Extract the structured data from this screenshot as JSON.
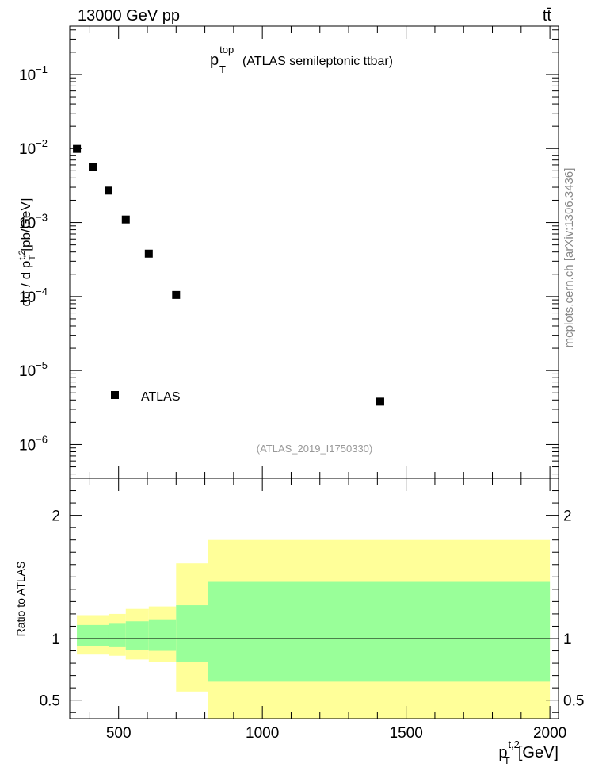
{
  "header": {
    "energy_label": "13000 GeV pp",
    "process_label": "tt̄"
  },
  "watermark": "mcplots.cern.ch [arXiv:1306.3436]",
  "chart_data": [
    {
      "type": "scatter",
      "panel": "main",
      "title_main": "p",
      "title_sup": "top",
      "title_sub": "T",
      "title_rest": "(ATLAS semileptonic ttbar)",
      "analysis_id": "(ATLAS_2019_I1750330)",
      "ylabel": "dσ / d p_T^{t,2} [pb/GeV]",
      "yscale": "log",
      "ylim": [
        3.5e-07,
        0.45
      ],
      "xlim": [
        330,
        2030
      ],
      "yticks": [
        {
          "value": 0.1,
          "base": "10",
          "exp": "−1"
        },
        {
          "value": 0.01,
          "base": "10",
          "exp": "−2"
        },
        {
          "value": 0.001,
          "base": "10",
          "exp": "−3"
        },
        {
          "value": 0.0001,
          "base": "10",
          "exp": "−4"
        },
        {
          "value": 1e-05,
          "base": "10",
          "exp": "−5"
        },
        {
          "value": 1e-06,
          "base": "10",
          "exp": "−6"
        }
      ],
      "series": [
        {
          "name": "ATLAS",
          "marker": "square",
          "x": [
            355,
            410,
            465,
            525,
            605,
            700,
            1410
          ],
          "y": [
            0.0099,
            0.0057,
            0.0027,
            0.0011,
            0.00038,
            0.000105,
            3.8e-06
          ]
        }
      ],
      "legend": [
        {
          "label": "ATLAS",
          "marker": "square"
        }
      ],
      "legend_position": "bottom-left"
    },
    {
      "type": "area",
      "panel": "ratio",
      "ylabel": "Ratio to ATLAS",
      "xlabel": "p_T^{t,2} [GeV]",
      "xlabel_main": "p",
      "xlabel_sup": "t,2",
      "xlabel_sub": "T",
      "xlabel_rest": "[GeV]",
      "xlim": [
        330,
        2030
      ],
      "ylim": [
        0.35,
        2.3
      ],
      "xticks": [
        {
          "value": 500,
          "label": "500"
        },
        {
          "value": 1000,
          "label": "1000"
        },
        {
          "value": 1500,
          "label": "1500"
        },
        {
          "value": 2000,
          "label": "2000"
        }
      ],
      "yticks": [
        {
          "value": 2,
          "label": "2"
        },
        {
          "value": 1,
          "label": "1"
        },
        {
          "value": 0.5,
          "label": "0.5"
        }
      ],
      "reference_line": 1,
      "bins": [
        {
          "x0": 355,
          "x1": 410,
          "stat_lo": 0.94,
          "stat_hi": 1.11,
          "tot_lo": 0.87,
          "tot_hi": 1.19
        },
        {
          "x0": 410,
          "x1": 465,
          "stat_lo": 0.94,
          "stat_hi": 1.11,
          "tot_lo": 0.87,
          "tot_hi": 1.19
        },
        {
          "x0": 465,
          "x1": 525,
          "stat_lo": 0.93,
          "stat_hi": 1.12,
          "tot_lo": 0.86,
          "tot_hi": 1.2
        },
        {
          "x0": 525,
          "x1": 605,
          "stat_lo": 0.91,
          "stat_hi": 1.14,
          "tot_lo": 0.83,
          "tot_hi": 1.24
        },
        {
          "x0": 605,
          "x1": 700,
          "stat_lo": 0.9,
          "stat_hi": 1.15,
          "tot_lo": 0.81,
          "tot_hi": 1.26
        },
        {
          "x0": 700,
          "x1": 810,
          "stat_lo": 0.81,
          "stat_hi": 1.27,
          "tot_lo": 0.57,
          "tot_hi": 1.61
        },
        {
          "x0": 810,
          "x1": 2000,
          "stat_lo": 0.65,
          "stat_hi": 1.46,
          "tot_lo": 0.35,
          "tot_hi": 1.8
        }
      ],
      "colors": {
        "stat": "#99ff99",
        "total": "#ffff99"
      }
    }
  ]
}
